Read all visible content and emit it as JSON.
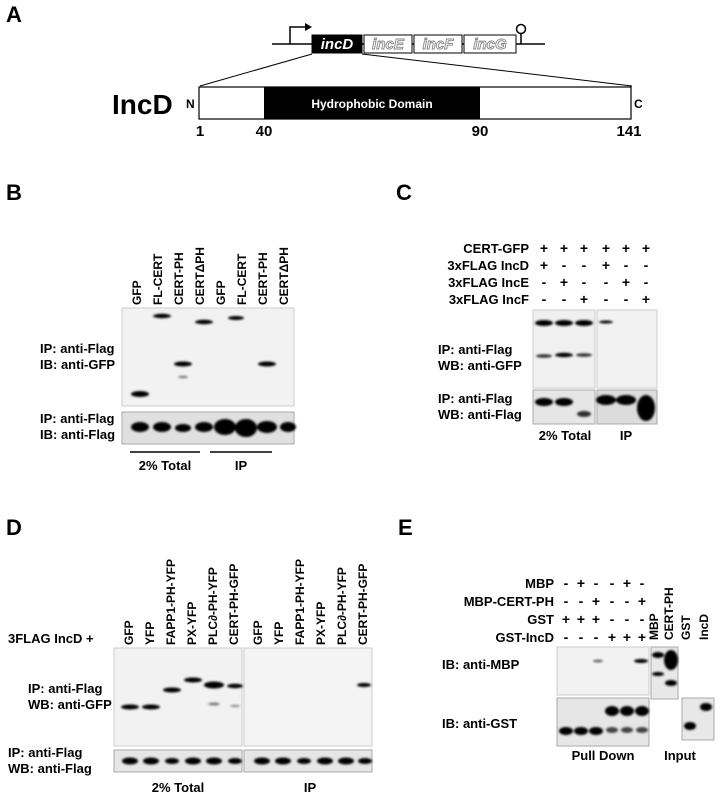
{
  "panel_a": {
    "letter": "A",
    "genes": [
      "incD",
      "incE",
      "incF",
      "incG"
    ],
    "protein": "IncD",
    "n_term": "N",
    "c_term": "C",
    "domain": "Hydrophobic Domain",
    "positions": [
      "1",
      "40",
      "90",
      "141"
    ]
  },
  "panel_b": {
    "letter": "B",
    "lanes": [
      "GFP",
      "FL-CERT",
      "CERT-PH",
      "CERTΔPH",
      "GFP",
      "FL-CERT",
      "CERT-PH",
      "CERTΔPH"
    ],
    "ip1": "IP: anti-Flag",
    "ib1": "IB: anti-GFP",
    "ip2": "IP: anti-Flag",
    "ib2": "IB: anti-Flag",
    "group1": "2% Total",
    "group2": "IP"
  },
  "panel_c": {
    "letter": "C",
    "rows": [
      {
        "label": "CERT-GFP",
        "signs": [
          "+",
          "+",
          "+",
          "+",
          "+",
          "+"
        ]
      },
      {
        "label": "3xFLAG IncD",
        "signs": [
          "+",
          "-",
          "-",
          "+",
          "-",
          "-"
        ]
      },
      {
        "label": "3xFLAG IncE",
        "signs": [
          "-",
          "+",
          "-",
          "-",
          "+",
          "-"
        ]
      },
      {
        "label": "3xFLAG IncF",
        "signs": [
          "-",
          "-",
          "+",
          "-",
          "-",
          "+"
        ]
      }
    ],
    "ip1": "IP: anti-Flag",
    "wb1": "WB: anti-GFP",
    "ip2": "IP: anti-Flag",
    "wb2": "WB: anti-Flag",
    "group1": "2% Total",
    "group2": "IP"
  },
  "panel_d": {
    "letter": "D",
    "lanes": [
      "GFP",
      "YFP",
      "FAPP1-PH-YFP",
      "PX-YFP",
      "PLC∂-PH-YFP",
      "CERT-PH-GFP",
      "GFP",
      "YFP",
      "FAPP1-PH-YFP",
      "PX-YFP",
      "PLC∂-PH-YFP",
      "CERT-PH-GFP"
    ],
    "prefix": "3FLAG IncD +",
    "ip1": "IP: anti-Flag",
    "wb1": "WB: anti-GFP",
    "ip2": "IP: anti-Flag",
    "wb2": "WB: anti-Flag",
    "group1": "2% Total",
    "group2": "IP"
  },
  "panel_e": {
    "letter": "E",
    "rows": [
      {
        "label": "MBP",
        "signs": [
          "-",
          "+",
          "-",
          "-",
          "+",
          "-"
        ]
      },
      {
        "label": "MBP-CERT-PH",
        "signs": [
          "-",
          "-",
          "+",
          "-",
          "-",
          "+"
        ]
      },
      {
        "label": "GST",
        "signs": [
          "+",
          "+",
          "+",
          "-",
          "-",
          "-"
        ]
      },
      {
        "label": "GST-IncD",
        "signs": [
          "-",
          "-",
          "-",
          "+",
          "+",
          "+"
        ]
      }
    ],
    "input_lanes": [
      "MBP",
      "CERT-PH",
      "GST",
      "IncD"
    ],
    "ib1": "IB: anti-MBP",
    "ib2": "IB: anti-GST",
    "group1": "Pull Down",
    "group2": "Input"
  }
}
